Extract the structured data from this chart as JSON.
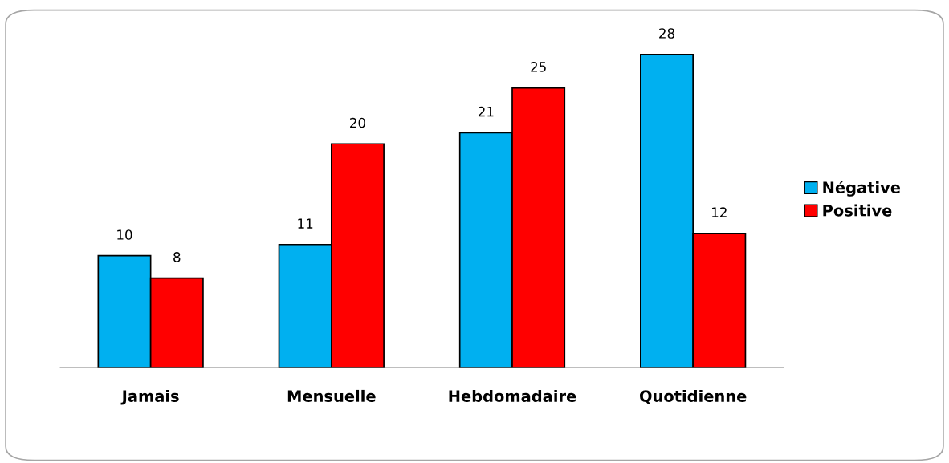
{
  "chart_data": {
    "type": "bar",
    "categories": [
      "Jamais",
      "Mensuelle",
      "Hebdomadaire",
      "Quotidienne"
    ],
    "series": [
      {
        "name": "Négative",
        "color": "#00b0f0",
        "values": [
          10,
          11,
          21,
          28
        ]
      },
      {
        "name": "Positive",
        "color": "#ff0000",
        "values": [
          8,
          20,
          25,
          12
        ]
      }
    ],
    "data_labels": true,
    "legend": "right",
    "grid": false
  }
}
